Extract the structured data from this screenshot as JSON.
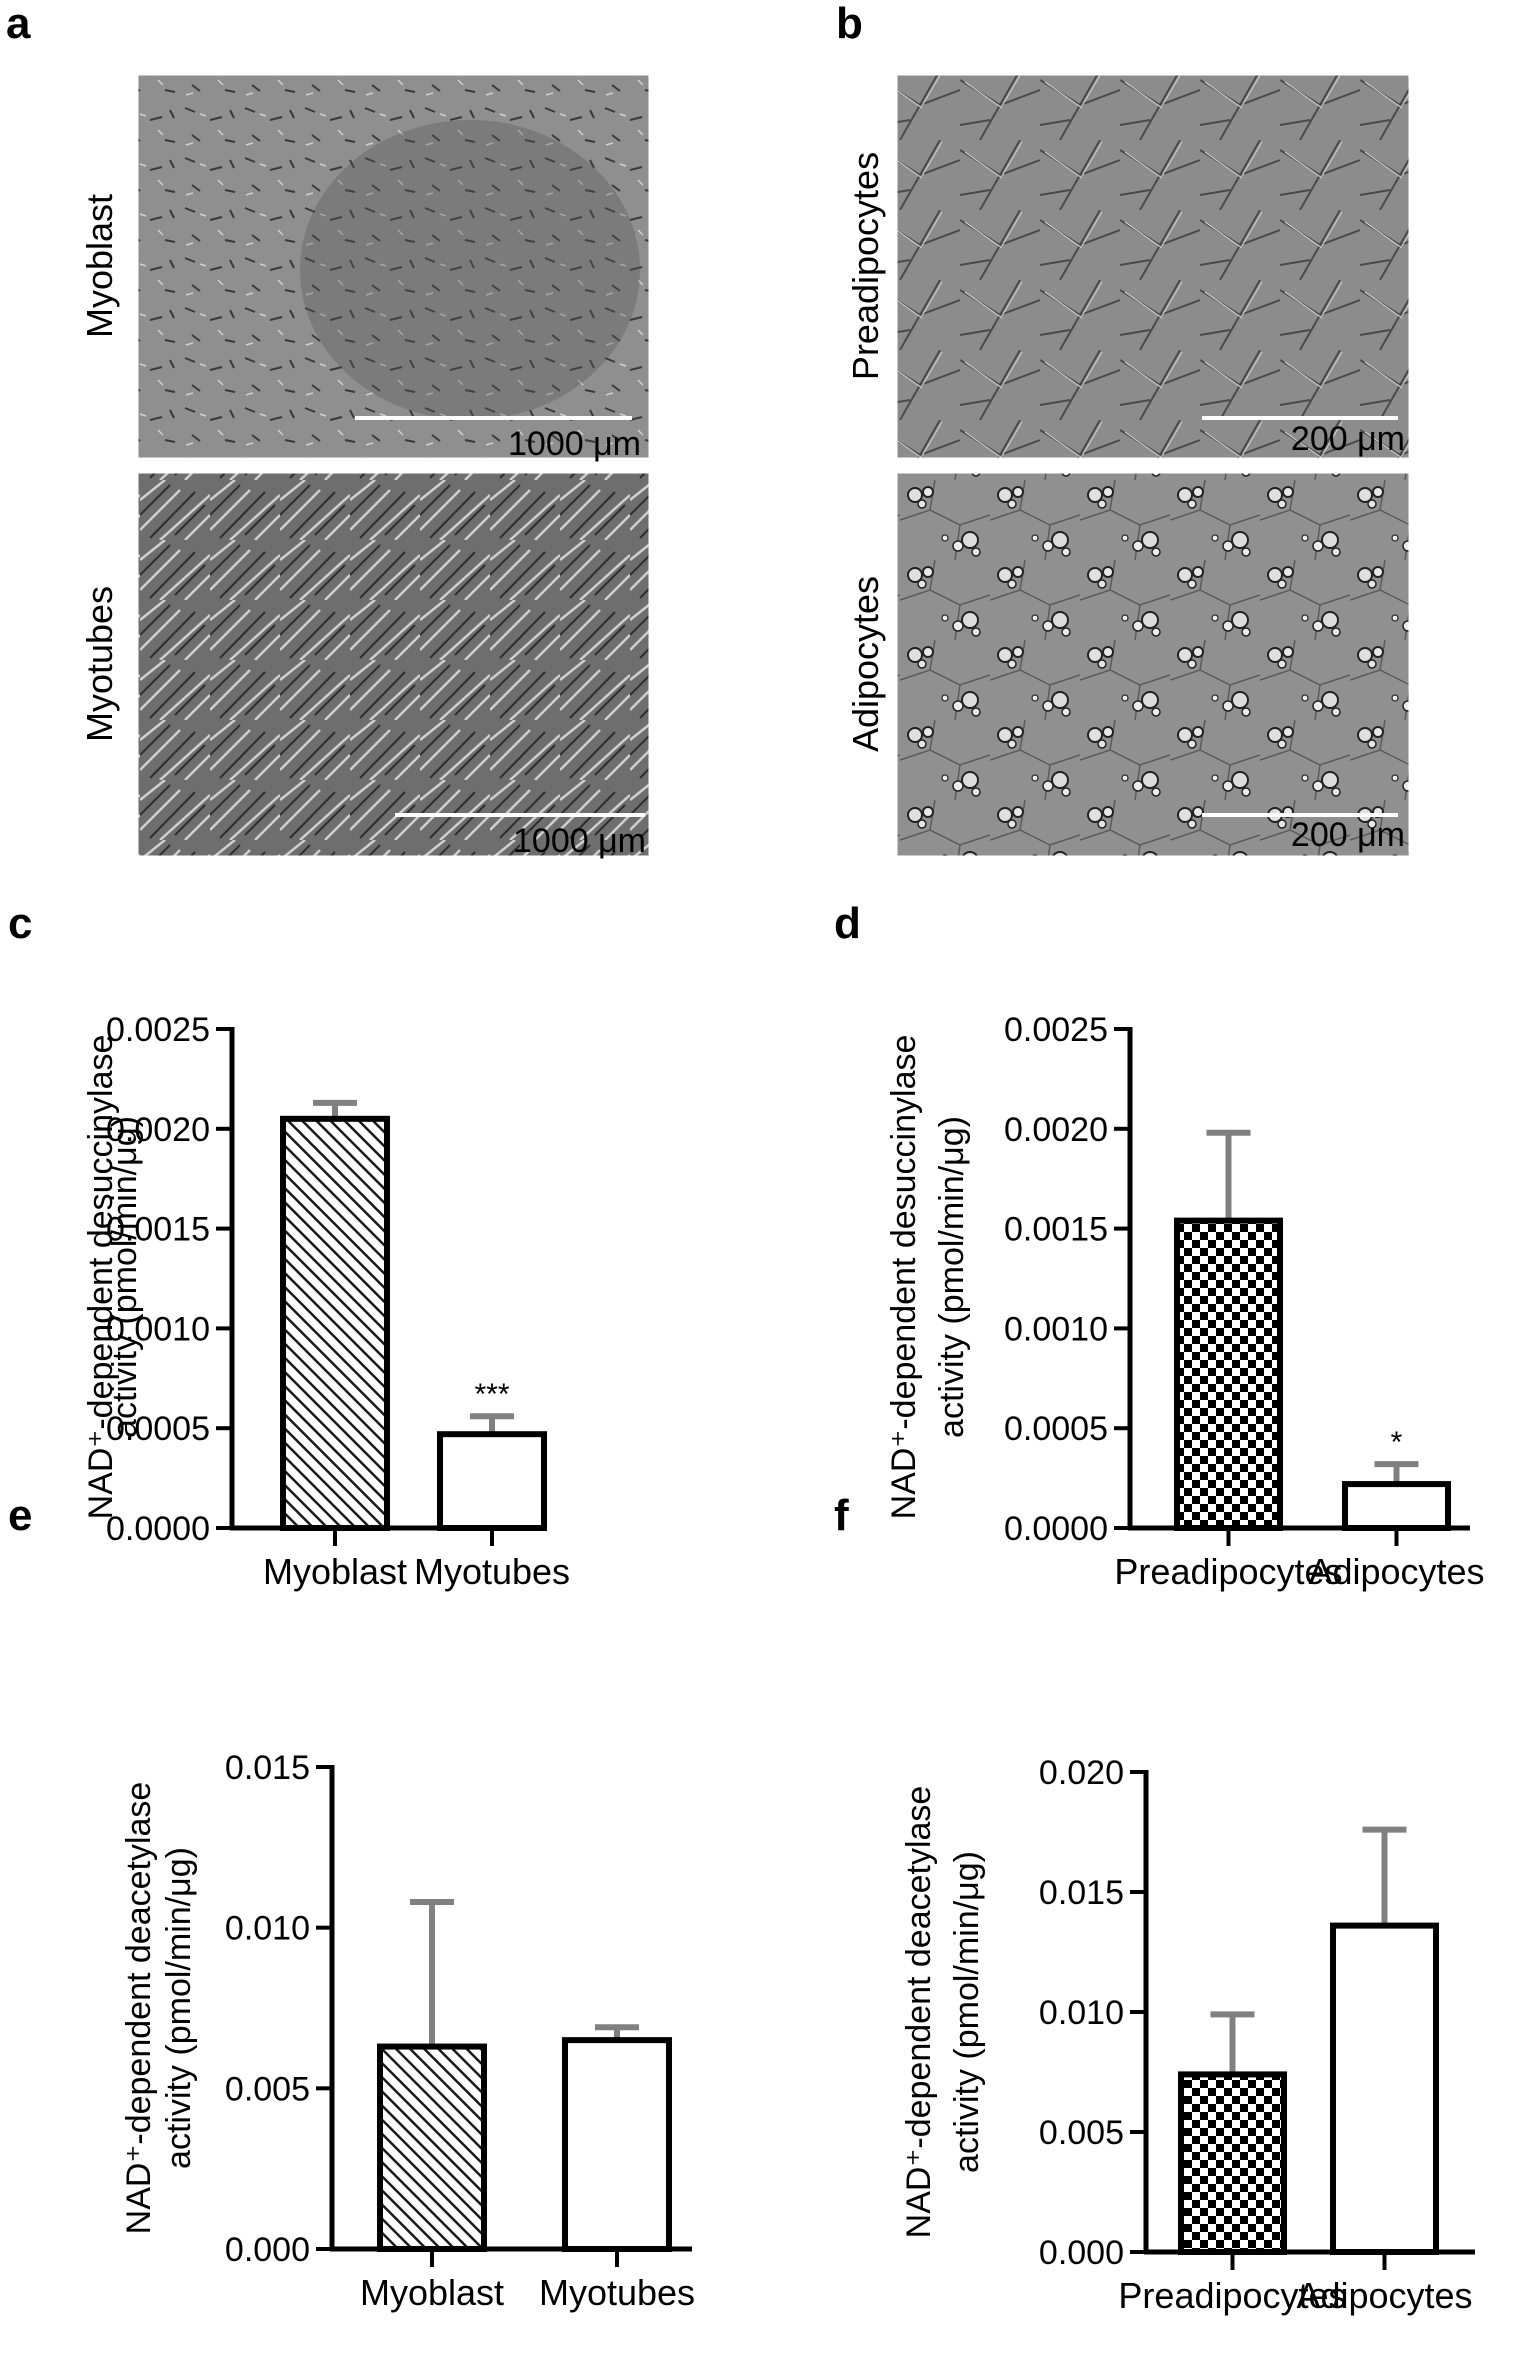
{
  "panels": {
    "a": {
      "label": "a",
      "images": [
        {
          "row_label": "Myoblast",
          "scale_bar": "1000 μm",
          "texture": "sparse"
        },
        {
          "row_label": "Myotubes",
          "scale_bar": "1000 μm",
          "texture": "fibers"
        }
      ]
    },
    "b": {
      "label": "b",
      "images": [
        {
          "row_label": "Preadipocytes",
          "scale_bar": "200 μm",
          "texture": "network"
        },
        {
          "row_label": "Adipocytes",
          "scale_bar": "200 μm",
          "texture": "droplets"
        }
      ]
    }
  },
  "colors": {
    "bar_edge": "#000000",
    "error_bar": "#808080",
    "hatch": "#1a1a1a",
    "micrograph_bg": "#8a8a8a"
  },
  "chart_data": [
    {
      "panel": "c",
      "type": "bar",
      "ylabel_line1": "NAD⁺-dependent desuccinylase",
      "ylabel_line2": "activity (pmol/min/μg)",
      "categories": [
        "Myoblast",
        "Myotubes"
      ],
      "values": [
        0.00205,
        0.00047
      ],
      "errors": [
        8e-05,
        9e-05
      ],
      "fills": [
        "hatch",
        "white"
      ],
      "significance": [
        "",
        "***"
      ],
      "ylim": [
        0,
        0.0025
      ],
      "yticks": [
        "0.0000",
        "0.0005",
        "0.0010",
        "0.0015",
        "0.0020",
        "0.0025"
      ]
    },
    {
      "panel": "d",
      "type": "bar",
      "ylabel_line1": "NAD⁺-dependent desuccinylase",
      "ylabel_line2": "activity (pmol/min/μg)",
      "categories": [
        "Preadipocytes",
        "Adipocytes"
      ],
      "values": [
        0.00154,
        0.00022
      ],
      "errors": [
        0.00044,
        0.0001
      ],
      "fills": [
        "checker",
        "white"
      ],
      "significance": [
        "",
        "*"
      ],
      "ylim": [
        0,
        0.0025
      ],
      "yticks": [
        "0.0000",
        "0.0005",
        "0.0010",
        "0.0015",
        "0.0020",
        "0.0025"
      ]
    },
    {
      "panel": "e",
      "type": "bar",
      "ylabel_line1": "NAD⁺-dependent deacetylase",
      "ylabel_line2": "activity (pmol/min/μg)",
      "categories": [
        "Myoblast",
        "Myotubes"
      ],
      "values": [
        0.0063,
        0.0065
      ],
      "errors": [
        0.0045,
        0.0004
      ],
      "fills": [
        "hatch",
        "white"
      ],
      "significance": [
        "",
        ""
      ],
      "ylim": [
        0,
        0.015
      ],
      "yticks": [
        "0.000",
        "0.005",
        "0.010",
        "0.015"
      ]
    },
    {
      "panel": "f",
      "type": "bar",
      "ylabel_line1": "NAD⁺-dependent deacetylase",
      "ylabel_line2": "activity (pmol/min/μg)",
      "categories": [
        "Preadipocytes",
        "Adipocytes"
      ],
      "values": [
        0.0074,
        0.0136
      ],
      "errors": [
        0.0025,
        0.004
      ],
      "fills": [
        "checker",
        "white"
      ],
      "significance": [
        "",
        ""
      ],
      "ylim": [
        0,
        0.02
      ],
      "yticks": [
        "0.000",
        "0.005",
        "0.010",
        "0.015",
        "0.020"
      ]
    }
  ]
}
